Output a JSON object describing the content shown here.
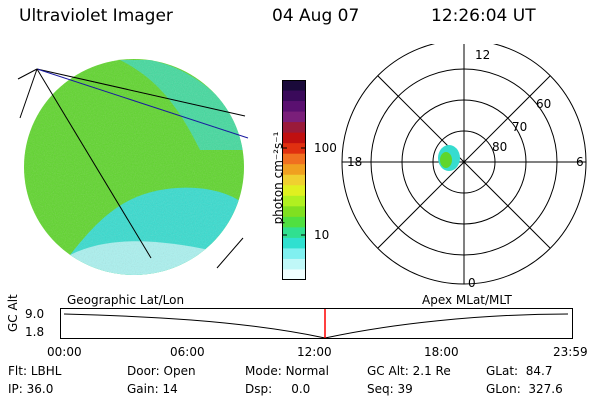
{
  "header": {
    "title": "Ultraviolet Imager",
    "date": "04 Aug 07",
    "time": "12:26:04 UT"
  },
  "colorbar": {
    "unit_label": "photon cm⁻²s⁻¹",
    "ticks": [
      "100",
      "10"
    ],
    "colors": [
      "#1a0a3a",
      "#3a0a5a",
      "#5a1070",
      "#7a1f7a",
      "#9a1a3a",
      "#c01010",
      "#e03010",
      "#f07020",
      "#f0a020",
      "#f0d030",
      "#e0f020",
      "#b0f020",
      "#80e020",
      "#50e040",
      "#30e090",
      "#30e0d0",
      "#80f0f0",
      "#c0f8f8",
      "#f0ffff"
    ]
  },
  "earth_view": {
    "label": "Geographic Lat/Lon",
    "fill_colors": {
      "green": "#5fd62c",
      "cyan": "#36dccf",
      "light": "#bff6f6"
    }
  },
  "polar_plot": {
    "label": "Apex MLat/MLT",
    "mlt_labels": {
      "top": "12",
      "right": "6",
      "bottom": "0",
      "left": "18"
    },
    "lat_labels": [
      "60",
      "70",
      "80"
    ]
  },
  "altitude_plot": {
    "axis_label": "GC Alt",
    "y_ticks": [
      "9.0",
      "1.8"
    ],
    "x_ticks": [
      "00:00",
      "06:00",
      "12:00",
      "18:00",
      "23:59"
    ],
    "marker_color": "#ff0000"
  },
  "info": {
    "row1": [
      {
        "key": "Flt:",
        "val": "LBHL"
      },
      {
        "key": "Door:",
        "val": "Open"
      },
      {
        "key": "Mode:",
        "val": "Normal"
      },
      {
        "key": "GC Alt:",
        "val": "2.1 Re"
      },
      {
        "key": "GLat:",
        "val": "84.7"
      }
    ],
    "row2": [
      {
        "key": "IP:",
        "val": "36.0"
      },
      {
        "key": "Gain:",
        "val": "14"
      },
      {
        "key": "Dsp:",
        "val": "0.0"
      },
      {
        "key": "Seq:",
        "val": "39"
      },
      {
        "key": "GLon:",
        "val": "327.6"
      }
    ]
  }
}
